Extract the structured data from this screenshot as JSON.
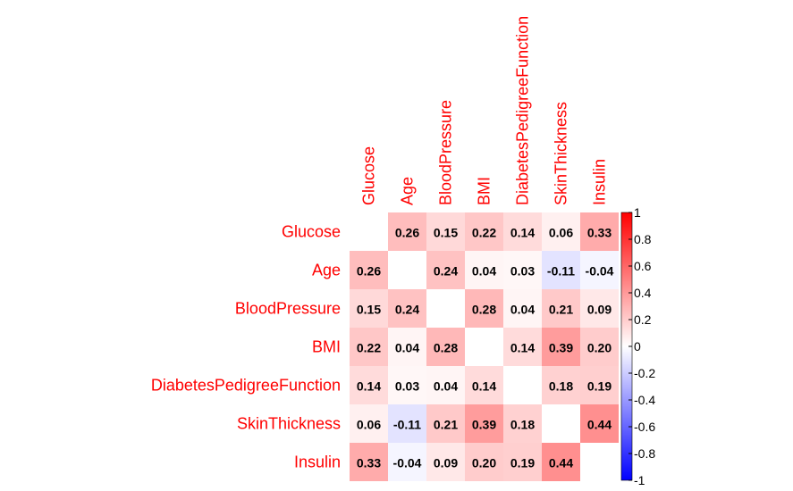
{
  "chart_data": {
    "type": "heatmap",
    "variables": [
      "Glucose",
      "Age",
      "BloodPressure",
      "BMI",
      "DiabetesPedigreeFunction",
      "SkinThickness",
      "Insulin"
    ],
    "matrix": [
      [
        null,
        0.26,
        0.15,
        0.22,
        0.14,
        0.06,
        0.33
      ],
      [
        0.26,
        null,
        0.24,
        0.04,
        0.03,
        -0.11,
        -0.04
      ],
      [
        0.15,
        0.24,
        null,
        0.28,
        0.04,
        0.21,
        0.09
      ],
      [
        0.22,
        0.04,
        0.28,
        null,
        0.14,
        0.39,
        0.2
      ],
      [
        0.14,
        0.03,
        0.04,
        0.14,
        null,
        0.18,
        0.19
      ],
      [
        0.06,
        -0.11,
        0.21,
        0.39,
        0.18,
        null,
        0.44
      ],
      [
        0.33,
        -0.04,
        0.09,
        0.2,
        0.19,
        0.44,
        null
      ]
    ],
    "value_labels": [
      [
        "",
        "0.26",
        "0.15",
        "0.22",
        "0.14",
        "0.06",
        "0.33"
      ],
      [
        "0.26",
        "",
        "0.24",
        "0.04",
        "0.03",
        "-0.11",
        "-0.04"
      ],
      [
        "0.15",
        "0.24",
        "",
        "0.28",
        "0.04",
        "0.21",
        "0.09"
      ],
      [
        "0.22",
        "0.04",
        "0.28",
        "",
        "0.14",
        "0.39",
        "0.20"
      ],
      [
        "0.14",
        "0.03",
        "0.04",
        "0.14",
        "",
        "0.18",
        "0.19"
      ],
      [
        "0.06",
        "-0.11",
        "0.21",
        "0.39",
        "0.18",
        "",
        "0.44"
      ],
      [
        "0.33",
        "-0.04",
        "0.09",
        "0.20",
        "0.19",
        "0.44",
        ""
      ]
    ],
    "colorbar": {
      "range": [
        -1,
        1
      ],
      "tick_values": [
        1,
        0.8,
        0.6,
        0.4,
        0.2,
        0,
        -0.2,
        -0.4,
        -0.6,
        -0.8,
        -1
      ],
      "tick_labels": [
        "1",
        "0.8",
        "0.6",
        "0.4",
        "0.2",
        "0",
        "-0.2",
        "-0.4",
        "-0.6",
        "-0.8",
        "-1"
      ]
    },
    "colors": {
      "negative": "#0000ff",
      "zero": "#ffffff",
      "positive": "#ff0000",
      "label": "#ff0000",
      "value_text": "#000000"
    },
    "diagonal": "blank",
    "row_label_position": "left",
    "column_label_position": "top, rotated vertical",
    "legend_position": "right"
  }
}
